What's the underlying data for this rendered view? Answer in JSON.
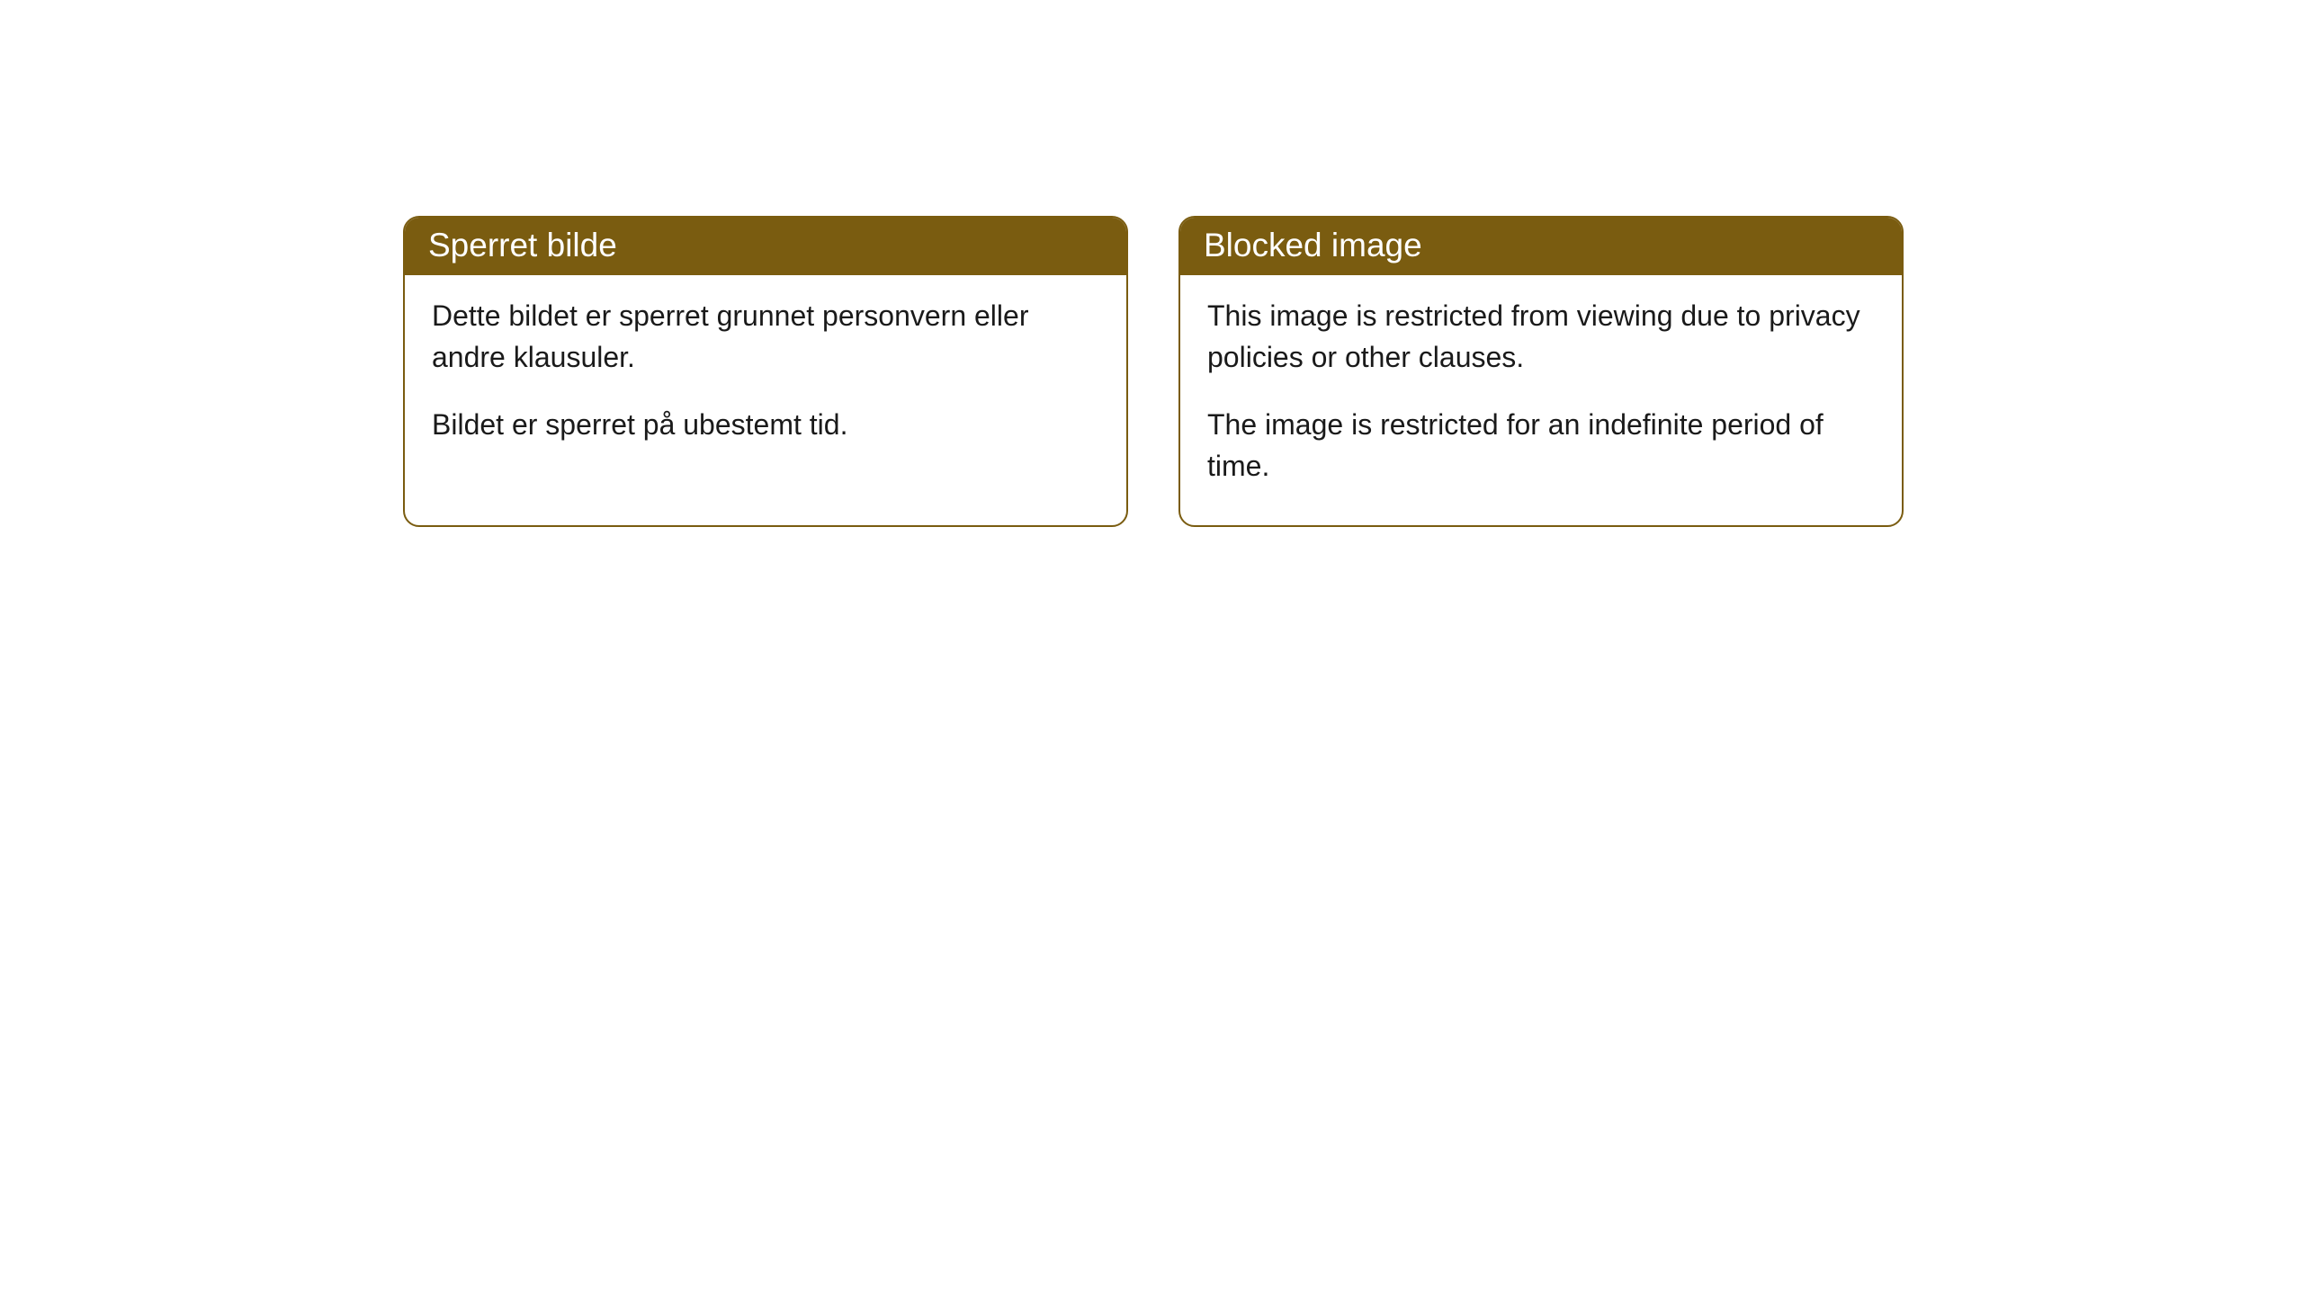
{
  "cards": [
    {
      "title": "Sperret bilde",
      "paragraph1": "Dette bildet er sperret grunnet personvern eller andre klausuler.",
      "paragraph2": "Bildet er sperret på ubestemt tid."
    },
    {
      "title": "Blocked image",
      "paragraph1": "This image is restricted from viewing due to privacy policies or other clauses.",
      "paragraph2": "The image is restricted for an indefinite period of time."
    }
  ],
  "style": {
    "header_bg": "#7a5c10",
    "header_text": "#ffffff",
    "border_color": "#7a5c10",
    "body_bg": "#ffffff",
    "body_text": "#1a1a1a",
    "border_radius": 18,
    "title_fontsize": 37,
    "body_fontsize": 32
  }
}
